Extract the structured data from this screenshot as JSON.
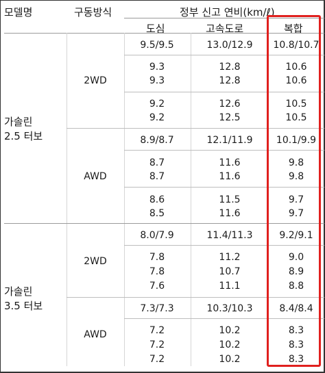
{
  "headers": {
    "model": "모델명",
    "drive": "구동방식",
    "efficiency": "정부 신고 연비(km/ℓ)",
    "city": "도심",
    "highway": "고속도로",
    "combined": "복합"
  },
  "groups": [
    {
      "model_line1": "가솔린",
      "model_line2": "2.5 터보",
      "drives": [
        {
          "label": "2WD",
          "rows": [
            {
              "city": "9.5/9.5",
              "highway": "13.0/12.9",
              "combined": "10.8/10.7"
            },
            {
              "city": "9.3",
              "highway": "12.8",
              "combined": "10.6"
            },
            {
              "city": "9.3",
              "highway": "12.8",
              "combined": "10.6"
            },
            {
              "city": "9.2",
              "highway": "12.6",
              "combined": "10.5"
            },
            {
              "city": "9.2",
              "highway": "12.5",
              "combined": "10.5"
            }
          ]
        },
        {
          "label": "AWD",
          "rows": [
            {
              "city": "8.9/8.7",
              "highway": "12.1/11.9",
              "combined": "10.1/9.9"
            },
            {
              "city": "8.7",
              "highway": "11.6",
              "combined": "9.8"
            },
            {
              "city": "8.7",
              "highway": "11.6",
              "combined": "9.8"
            },
            {
              "city": "8.6",
              "highway": "11.5",
              "combined": "9.7"
            },
            {
              "city": "8.5",
              "highway": "11.6",
              "combined": "9.7"
            }
          ]
        }
      ]
    },
    {
      "model_line1": "가솔린",
      "model_line2": "3.5 터보",
      "drives": [
        {
          "label": "2WD",
          "rows": [
            {
              "city": "8.0/7.9",
              "highway": "11.4/11.3",
              "combined": "9.2/9.1"
            },
            {
              "city": "7.8",
              "highway": "11.2",
              "combined": "9.0"
            },
            {
              "city": "7.8",
              "highway": "10.7",
              "combined": "8.9"
            },
            {
              "city": "7.6",
              "highway": "11.1",
              "combined": "8.8"
            }
          ]
        },
        {
          "label": "AWD",
          "rows": [
            {
              "city": "7.3/7.3",
              "highway": "10.3/10.3",
              "combined": "8.4/8.4"
            },
            {
              "city": "7.2",
              "highway": "10.2",
              "combined": "8.3"
            },
            {
              "city": "7.2",
              "highway": "10.2",
              "combined": "8.3"
            },
            {
              "city": "7.2",
              "highway": "10.2",
              "combined": "8.3"
            }
          ]
        }
      ]
    }
  ],
  "highlight_color": "#e0201e"
}
